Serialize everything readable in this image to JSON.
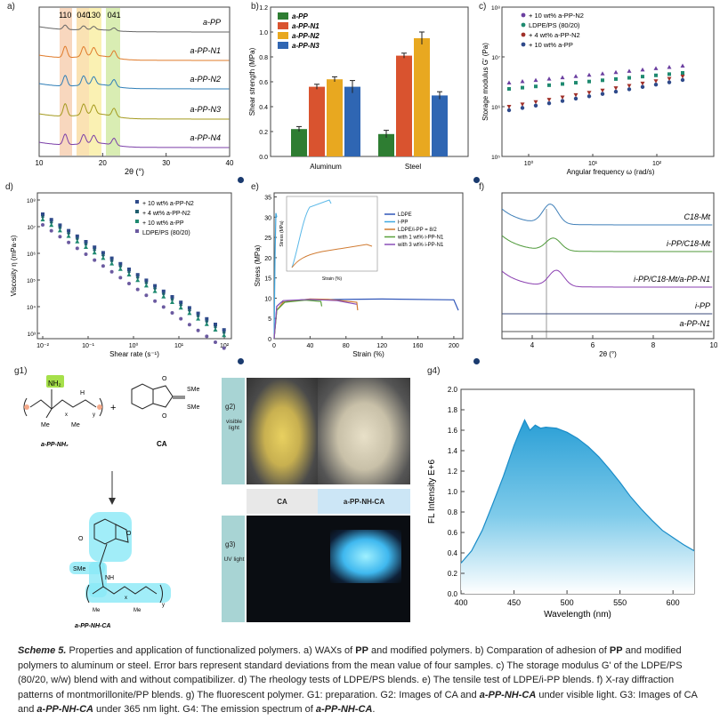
{
  "panel_letters": {
    "a": "a)",
    "b": "b)",
    "c": "c)",
    "d": "d)",
    "e": "e)",
    "f": "f)",
    "g1": "g1)",
    "g2": "g2)",
    "g3": "g3)",
    "g4": "g4)"
  },
  "colors": {
    "accent_blue": "#2d9fd6",
    "navy_dot": "#1a3a6e",
    "cyan_glow": "#4fd8f0"
  },
  "chart_data": [
    {
      "id": "a",
      "type": "line",
      "title": "",
      "xlabel": "2θ (°)",
      "xticks": [
        "10",
        "20",
        "30",
        "40"
      ],
      "xlim": [
        10,
        40
      ],
      "peaks": [
        {
          "label": "110",
          "x": 14.1
        },
        {
          "label": "040",
          "x": 17.0
        },
        {
          "label": "130",
          "x": 18.6
        },
        {
          "label": "041",
          "x": 21.8
        }
      ],
      "series": [
        {
          "name": "a-PP",
          "color": "#666666"
        },
        {
          "name": "a-PP-N1",
          "color": "#e07b2a"
        },
        {
          "name": "a-PP-N2",
          "color": "#2f7fb8"
        },
        {
          "name": "a-PP-N3",
          "color": "#a49a1e"
        },
        {
          "name": "a-PP-N4",
          "color": "#7b3fa8"
        }
      ]
    },
    {
      "id": "b",
      "type": "bar",
      "ylabel": "Shear strength (MPa)",
      "yticks": [
        "0.0",
        "0.2",
        "0.4",
        "0.6",
        "0.8",
        "1.0",
        "1.2"
      ],
      "ylim": [
        0,
        1.2
      ],
      "categories": [
        "Aluminum",
        "Steel"
      ],
      "series": [
        {
          "name": "a-PP",
          "color": "#2e7d32",
          "values": [
            0.22,
            0.18
          ],
          "errors": [
            0.02,
            0.03
          ]
        },
        {
          "name": "a-PP-N1",
          "color": "#d9532f",
          "values": [
            0.56,
            0.81
          ],
          "errors": [
            0.02,
            0.02
          ]
        },
        {
          "name": "a-PP-N2",
          "color": "#e8a820",
          "values": [
            0.62,
            0.95
          ],
          "errors": [
            0.02,
            0.05
          ]
        },
        {
          "name": "a-PP-N3",
          "color": "#2f66b3",
          "values": [
            0.56,
            0.49
          ],
          "errors": [
            0.05,
            0.03
          ]
        }
      ]
    },
    {
      "id": "c",
      "type": "scatter",
      "xlabel": "Angular frequency ω (rad/s)",
      "ylabel": "Storage modulus G' (Pa)",
      "xticks": [
        "10⁰",
        "10¹",
        "10²"
      ],
      "yticks": [
        "10⁵",
        "10⁶",
        "10⁷",
        "10⁸"
      ],
      "series": [
        {
          "name": "+ 10 wt% a-PP-N2",
          "color": "#6b3fa0",
          "marker": "triangle"
        },
        {
          "name": "LDPE/PS (80/20)",
          "color": "#1f8a70",
          "marker": "square"
        },
        {
          "name": "+ 4 wt% a-PP-N2",
          "color": "#a0302a",
          "marker": "triangle-down"
        },
        {
          "name": "+ 10 wt% a-PP",
          "color": "#2f4a8a",
          "marker": "circle"
        }
      ]
    },
    {
      "id": "d",
      "type": "scatter",
      "xlabel": "Shear rate (s⁻¹)",
      "ylabel": "Viscosity η (mPa·s)",
      "xticks": [
        "10⁻²",
        "10⁻¹",
        "10⁰",
        "10¹",
        "10²"
      ],
      "yticks": [
        "10³",
        "10⁴",
        "10⁵",
        "10⁶",
        "10⁷",
        "10⁸"
      ],
      "series": [
        {
          "name": "+ 10 wt% a-PP-N2",
          "color": "#2f4a8a",
          "marker": "square"
        },
        {
          "name": "+ 4 wt% a-PP-N2",
          "color": "#1f5e6e",
          "marker": "diamond"
        },
        {
          "name": "+ 10 wt% a-PP",
          "color": "#1f8a70",
          "marker": "triangle"
        },
        {
          "name": "LDPE/PS (80/20)",
          "color": "#6b5aa0",
          "marker": "circle"
        }
      ]
    },
    {
      "id": "e",
      "type": "line",
      "xlabel": "Strain (%)",
      "ylabel": "Stress (MPa)",
      "xticks": [
        "0",
        "40",
        "80",
        "120",
        "160",
        "200"
      ],
      "yticks": [
        "0",
        "5",
        "10",
        "15",
        "20",
        "25",
        "30",
        "35"
      ],
      "inset_xlabel": "Strain (%)",
      "inset_ylabel": "Stress (MPa)",
      "series": [
        {
          "name": "LDPE",
          "color": "#2f55b8"
        },
        {
          "name": "i-PP",
          "color": "#3fa8e0"
        },
        {
          "name": "LDPE/i-PP = 8/2",
          "color": "#d07a30"
        },
        {
          "name": "with 1 wt% i-PP-N1",
          "color": "#5aa03a"
        },
        {
          "name": "with 3 wt% i-PP-N1",
          "color": "#8a4fb8"
        }
      ]
    },
    {
      "id": "f",
      "type": "line",
      "xlabel": "2θ (°)",
      "xticks": [
        "4",
        "6",
        "8",
        "10"
      ],
      "series": [
        {
          "name": "C18-Mt",
          "color": "#3f7fb8"
        },
        {
          "name": "i-PP/C18-Mt",
          "color": "#4f9a3a"
        },
        {
          "name": "i-PP/C18-Mt/a-PP-N1",
          "color": "#8a3fb0"
        },
        {
          "name": "i-PP",
          "color": "#3a4a7a"
        },
        {
          "name": "a-PP-N1",
          "color": "#555555"
        }
      ]
    },
    {
      "id": "g4",
      "type": "area",
      "xlabel": "Wavelength (nm)",
      "ylabel": "FL Intensity E+6",
      "xticks": [
        "400",
        "450",
        "500",
        "550",
        "600"
      ],
      "xlim": [
        400,
        620
      ],
      "yticks": [
        "0.0",
        "0.2",
        "0.4",
        "0.6",
        "0.8",
        "1.0",
        "1.2",
        "1.4",
        "1.6",
        "1.8",
        "2.0"
      ],
      "ylim": [
        0,
        2.0
      ],
      "x": [
        400,
        410,
        420,
        430,
        440,
        450,
        455,
        460,
        465,
        470,
        475,
        480,
        490,
        500,
        510,
        520,
        530,
        540,
        550,
        560,
        570,
        580,
        590,
        600,
        610,
        620
      ],
      "values": [
        0.3,
        0.42,
        0.62,
        0.88,
        1.15,
        1.45,
        1.58,
        1.7,
        1.6,
        1.65,
        1.62,
        1.63,
        1.62,
        1.58,
        1.52,
        1.44,
        1.34,
        1.22,
        1.09,
        0.95,
        0.83,
        0.72,
        0.62,
        0.55,
        0.48,
        0.42
      ]
    }
  ],
  "scheme": {
    "reactant1": "a-PP-NH₂",
    "reactant1_group": "NH₂",
    "plus": "+",
    "reactant2": "CA",
    "sme": "SMe",
    "product": "a-PP-NH-CA",
    "me": "Me",
    "nh": "NH",
    "x": "x",
    "y": "y",
    "h": "H",
    "o": "O",
    "arrow": "↓"
  },
  "photos": {
    "g2_tag": "g2)",
    "g2_caption": "visible light",
    "g3_tag": "g3)",
    "g3_caption": "UV light",
    "label_ca": "CA",
    "label_product": "a-PP-NH-CA"
  },
  "caption": {
    "scheme_label": "Scheme 5.",
    "text1": " Properties and application of functionalized polymers. a) WAXs of ",
    "pp1": "PP",
    "text2": " and modified polymers. b) Comparation of adhesion of ",
    "pp2": "PP",
    "text3": " and modified polymers to aluminum or steel. Error bars represent standard deviations from the mean value of four samples. c) The storage modulus G' of the LDPE/PS (80/20, w/w) blend with and without compatibilizer. d) The rheology tests of LDPE/PS blends. e) The tensile test of LDPE/i-PP blends. f) X-ray diffraction patterns of montmorillonite/PP blends. g) The fluorescent polymer. G1: preparation. G2: Images of CA and ",
    "bold1": "a-PP-NH-CA",
    "text4": " under visible light. G3: Images of CA and ",
    "bold2": "a-PP-NH-CA",
    "text5": " under 365 nm light. G4: The emission spectrum of ",
    "bold3": "a-PP-NH-CA",
    "text6": "."
  }
}
